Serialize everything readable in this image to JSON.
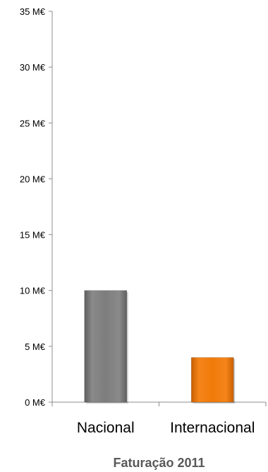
{
  "chart_data": {
    "type": "bar",
    "categories": [
      "Nacional",
      "Internacional"
    ],
    "values": [
      10,
      4
    ],
    "ylim": [
      0,
      35
    ],
    "ytick_values": [
      0,
      5,
      10,
      15,
      20,
      25,
      30,
      35
    ],
    "ytick_labels": [
      "0 M€",
      "5 M€",
      "10 M€",
      "15 M€",
      "20 M€",
      "25 M€",
      "30 M€",
      "35 M€"
    ],
    "xlabel": "Faturação 2011",
    "ylabel": "",
    "title": "",
    "grid": false,
    "legend": false,
    "colors": {
      "Nacional": "#808080",
      "Internacional": "#f07d10",
      "axis": "#8c8c8c"
    }
  }
}
